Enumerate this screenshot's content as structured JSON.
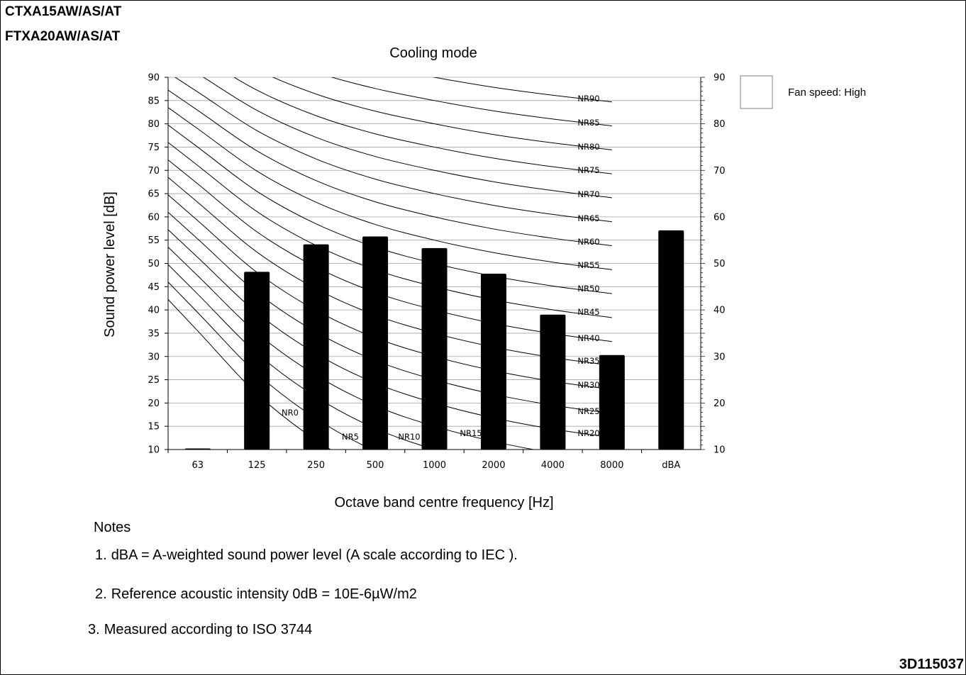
{
  "header": {
    "model_line_1": "CTXA15AW/AS/AT",
    "model_line_2": "FTXA20AW/AS/AT"
  },
  "chart_data": {
    "type": "bar",
    "title": "Cooling mode",
    "xlabel": "Octave band centre frequency [Hz]",
    "ylabel": "Sound power level [dB]",
    "categories": [
      "63",
      "125",
      "250",
      "500",
      "1000",
      "2000",
      "4000",
      "8000",
      "dBA"
    ],
    "values": [
      10.2,
      48.2,
      54.1,
      55.8,
      53.3,
      47.8,
      39.0,
      30.3,
      57.1
    ],
    "ylim": [
      10,
      90
    ],
    "yticks": [
      10,
      15,
      20,
      25,
      30,
      35,
      40,
      45,
      50,
      55,
      60,
      65,
      70,
      75,
      80,
      85,
      90
    ],
    "right_axis_ticks": [
      10,
      20,
      30,
      40,
      50,
      60,
      70,
      80,
      90
    ],
    "grid": "horizontal",
    "bar_color": "#000000",
    "legend": {
      "label": "Fan speed: High",
      "placement": "top-right"
    },
    "nr_curves": [
      {
        "label": "NR0"
      },
      {
        "label": "NR5"
      },
      {
        "label": "NR10"
      },
      {
        "label": "NR15"
      },
      {
        "label": "NR20"
      },
      {
        "label": "NR25"
      },
      {
        "label": "NR30"
      },
      {
        "label": "NR35"
      },
      {
        "label": "NR40"
      },
      {
        "label": "NR45"
      },
      {
        "label": "NR50"
      },
      {
        "label": "NR55"
      },
      {
        "label": "NR60"
      },
      {
        "label": "NR65"
      },
      {
        "label": "NR70"
      },
      {
        "label": "NR75"
      },
      {
        "label": "NR80"
      },
      {
        "label": "NR85"
      },
      {
        "label": "NR90"
      }
    ]
  },
  "notes": {
    "heading": "Notes",
    "items": [
      {
        "num": "1.",
        "text": "dBA = A-weighted sound power level (A scale according to IEC  )."
      },
      {
        "num": "2.",
        "text": "Reference acoustic intensity 0dB = 10E-6µW/m2"
      },
      {
        "num": "3.",
        "text": "Measured according to ISO 3744"
      }
    ]
  },
  "footer": {
    "doc_code": "3D115037"
  }
}
